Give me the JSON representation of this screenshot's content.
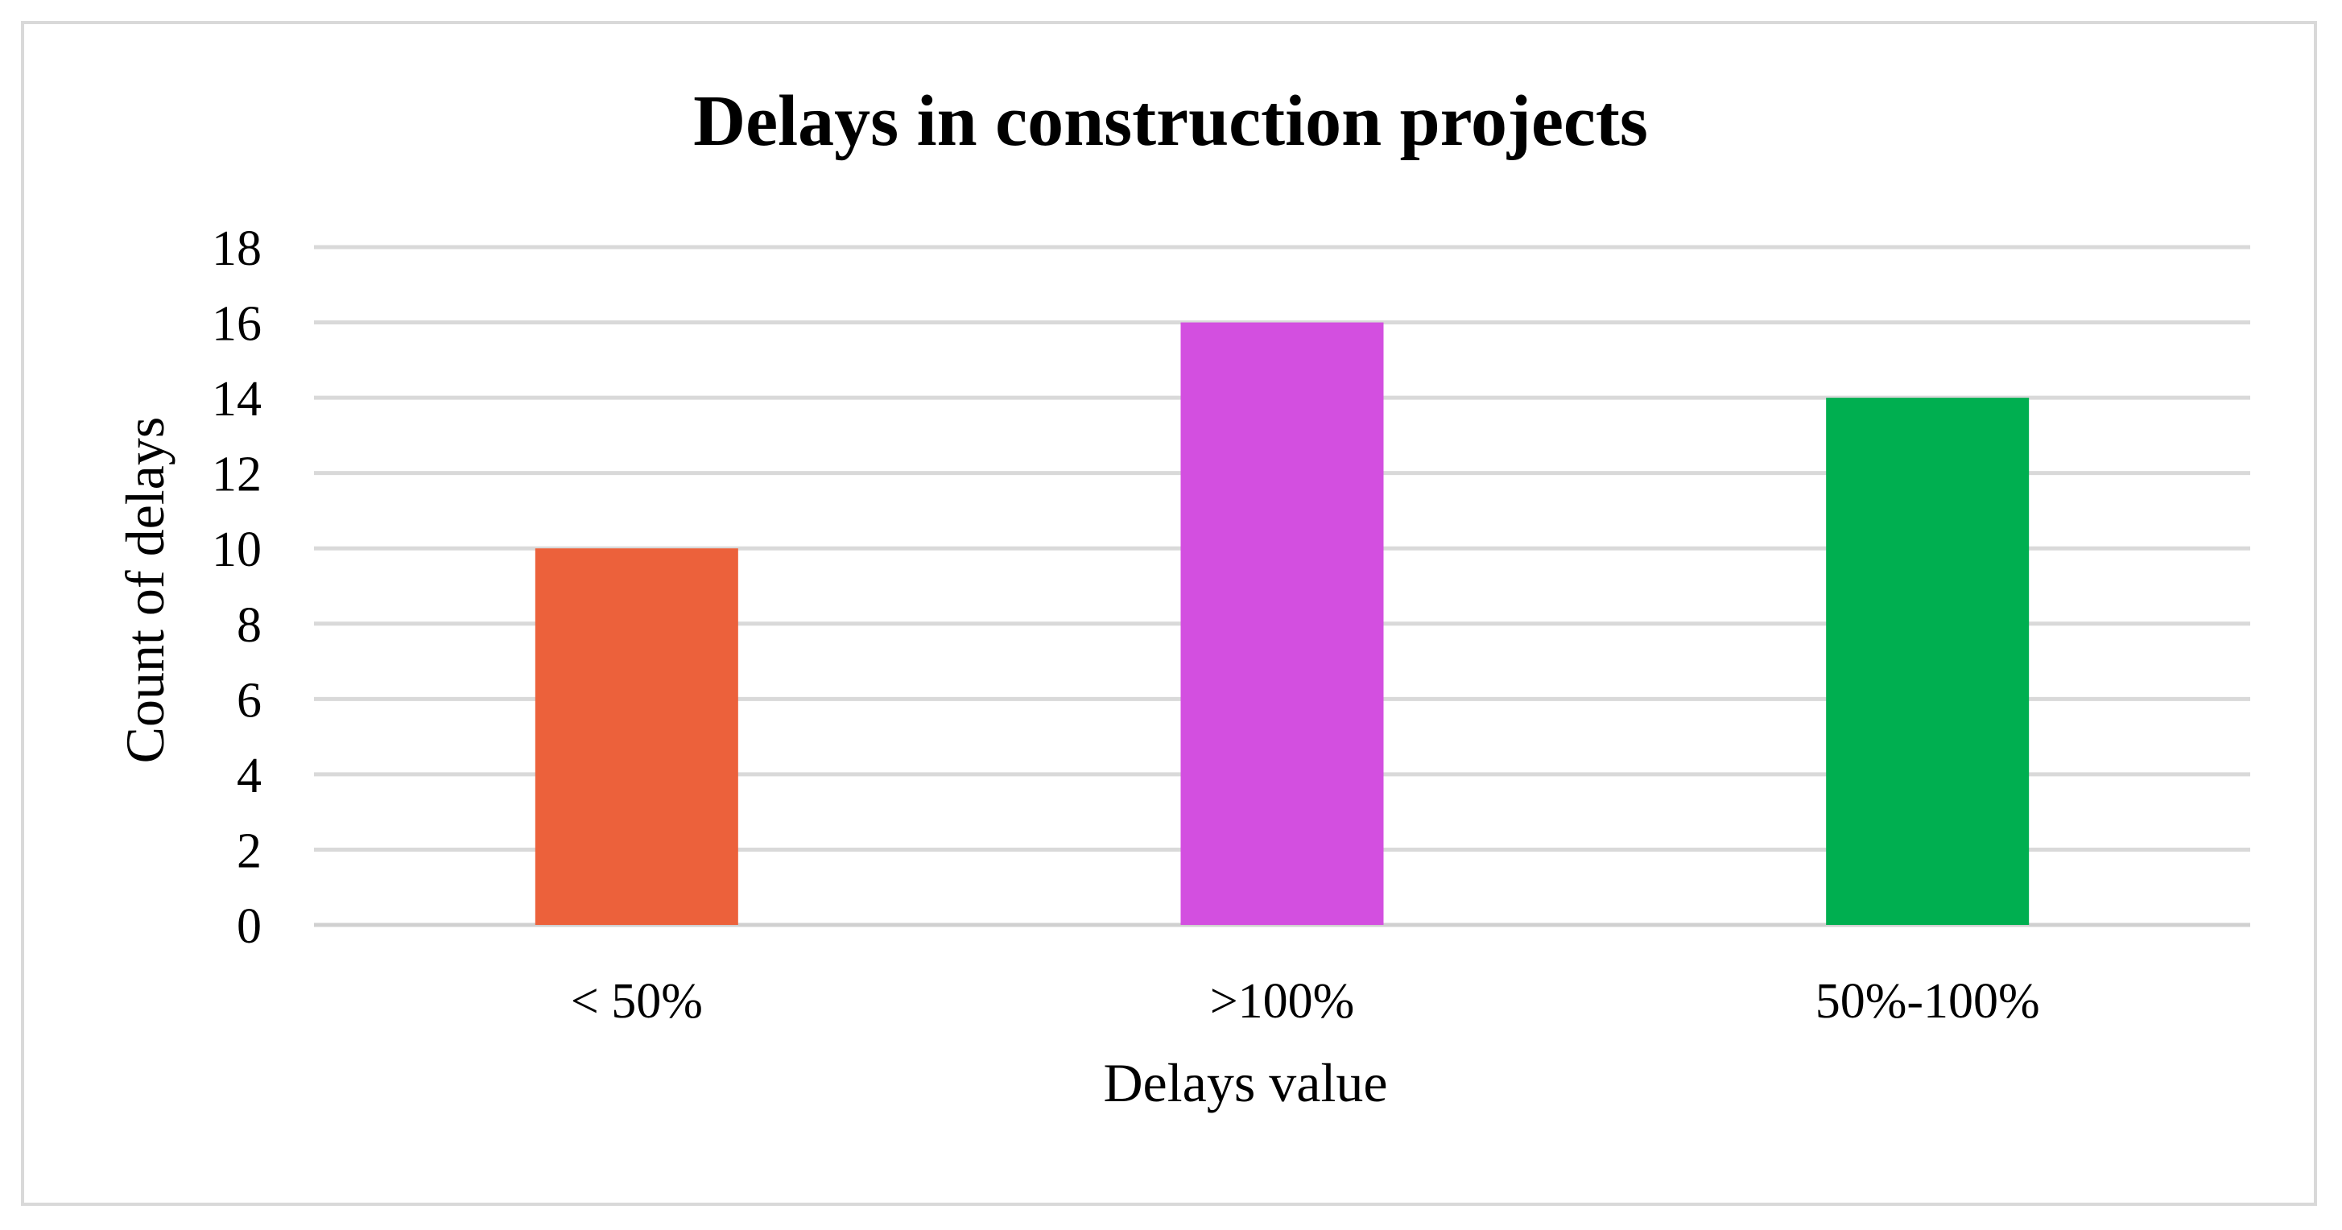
{
  "chart_data": {
    "type": "bar",
    "title": "Delays in construction projects",
    "xlabel": "Delays value",
    "ylabel": "Count of delays",
    "categories": [
      "< 50%",
      ">100%",
      "50%-100%"
    ],
    "values": [
      10,
      16,
      14
    ],
    "colors": [
      "#ec613b",
      "#d34fe0",
      "#00af50"
    ],
    "ylim": [
      0,
      18
    ],
    "yticks": [
      "0",
      "2",
      "4",
      "6",
      "8",
      "10",
      "12",
      "14",
      "16",
      "18"
    ],
    "grid": true,
    "legend": "none"
  }
}
